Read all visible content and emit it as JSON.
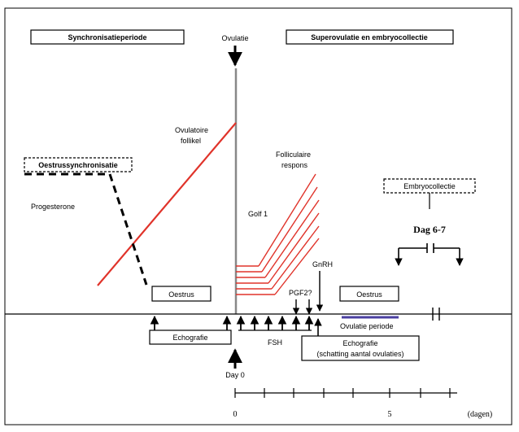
{
  "header": {
    "sync_period": "Synchronisatieperiode",
    "ovulatie": "Ovulatie",
    "superovulatie": "Superovulatie en embryocollectie"
  },
  "labels": {
    "ovulatoire": "Ovulatoire",
    "follikel": "follikel",
    "folliculaire": "Folliculaire",
    "respons": "respons",
    "oestrussync": "Oestrussynchronisatie",
    "progesterone": "Progesterone",
    "golf": "Golf 1",
    "embryocollectie": "Embryocollectie",
    "dag67": "Dag 6-7",
    "gnrh": "GnRH",
    "pgf": "PGF2?",
    "oestrus_left": "Oestrus",
    "oestrus_right": "Oestrus",
    "echografie_left": "Echografie",
    "fsh": "FSH",
    "ovulatie_periode": "Ovulatie periode",
    "echografie_right_1": "Echografie",
    "echografie_right_2": "(schatting aantal ovulaties)",
    "day0": "Day 0"
  },
  "axis": {
    "ticks": [
      "0",
      "5",
      "(dagen)"
    ]
  },
  "colors": {
    "red": "#e0332a",
    "blue": "#4a3fa0",
    "black": "#000000"
  }
}
